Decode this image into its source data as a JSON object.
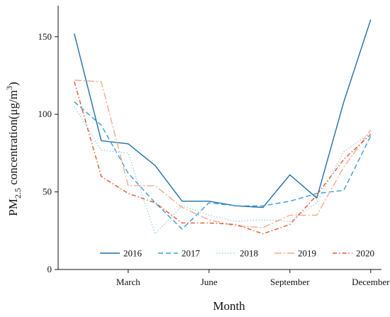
{
  "chart_data": {
    "type": "line",
    "title": "",
    "xlabel": "Month",
    "ylabel": {
      "main": "PM",
      "sub": "2.5",
      "rest": " concentration(μg/m",
      "sup": "3",
      "close": ")"
    },
    "x": [
      1,
      2,
      3,
      4,
      5,
      6,
      7,
      8,
      9,
      10,
      11,
      12
    ],
    "xlim": [
      0.4,
      12.4
    ],
    "x_ticks": [
      {
        "value": 3,
        "label": "March"
      },
      {
        "value": 6,
        "label": "June"
      },
      {
        "value": 9,
        "label": "September"
      },
      {
        "value": 12,
        "label": "December"
      }
    ],
    "ylim": [
      0,
      170
    ],
    "y_ticks": [
      {
        "value": 0,
        "label": "0"
      },
      {
        "value": 50,
        "label": "50"
      },
      {
        "value": 100,
        "label": "100"
      },
      {
        "value": 150,
        "label": "150"
      }
    ],
    "grid": false,
    "legend_position": "bottom-center",
    "series": [
      {
        "name": "2016",
        "color": "#1f6fa8",
        "dash": "solid",
        "values": [
          152,
          83,
          81,
          67,
          44,
          44,
          41,
          40,
          61,
          46,
          108,
          161
        ]
      },
      {
        "name": "2017",
        "color": "#3a9ad9",
        "dash": "dashed",
        "values": [
          108,
          93,
          62,
          43,
          26,
          43,
          41,
          41,
          44,
          49,
          51,
          86
        ]
      },
      {
        "name": "2018",
        "color": "#9ed0ea",
        "dash": "dotted",
        "values": [
          105,
          77,
          75,
          23,
          41,
          35,
          31,
          32,
          31,
          43,
          76,
          88
        ]
      },
      {
        "name": "2019",
        "color": "#f4a98a",
        "dash": "dashdot-long",
        "values": [
          122,
          121,
          54,
          54,
          40,
          32,
          28,
          27,
          35,
          35,
          66,
          90
        ]
      },
      {
        "name": "2020",
        "color": "#e3562e",
        "dash": "dashdot",
        "values": [
          121,
          60,
          49,
          43,
          30,
          30,
          29,
          23,
          29,
          48,
          71,
          87
        ]
      }
    ]
  }
}
